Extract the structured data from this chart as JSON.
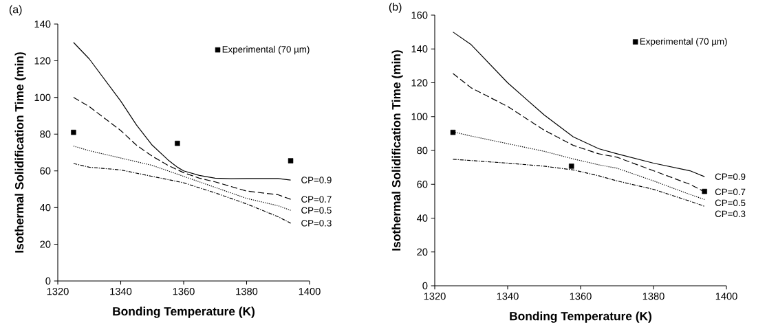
{
  "chart_data": [
    {
      "type": "line",
      "title": "(a)",
      "xlabel": "Bonding Temperature (K)",
      "ylabel": "Isothermal Solidification Time (min)",
      "xlim": [
        1320,
        1400
      ],
      "ylim": [
        0,
        140
      ],
      "xticks": [
        1320,
        1340,
        1360,
        1380,
        1400
      ],
      "yticks": [
        0,
        20,
        40,
        60,
        80,
        100,
        120,
        140
      ],
      "legend": "top right",
      "series": [
        {
          "name": "CP=0.9",
          "color": "#000000",
          "line_style": "solid",
          "marker": "none",
          "x": [
            1325,
            1330,
            1340,
            1345,
            1350,
            1355,
            1358,
            1360,
            1365,
            1370,
            1375,
            1380,
            1390,
            1394
          ],
          "values": [
            130,
            121,
            98,
            85,
            74,
            66,
            62,
            60,
            57.5,
            56,
            55.7,
            55.8,
            55.8,
            55
          ]
        },
        {
          "name": "CP=0.7",
          "color": "#000000",
          "line_style": "dashed",
          "marker": "none",
          "x": [
            1325,
            1330,
            1340,
            1345,
            1350,
            1355,
            1360,
            1365,
            1370,
            1380,
            1390,
            1394
          ],
          "values": [
            100,
            95,
            82,
            74,
            68,
            63,
            59,
            56,
            54,
            49,
            47,
            44.5
          ]
        },
        {
          "name": "CP=0.5",
          "color": "#000000",
          "line_style": "dotted",
          "marker": "none",
          "x": [
            1325,
            1330,
            1340,
            1350,
            1360,
            1370,
            1380,
            1390,
            1394
          ],
          "values": [
            73.5,
            71,
            67,
            63,
            57,
            51,
            45,
            41,
            38.5
          ]
        },
        {
          "name": "CP=0.3",
          "color": "#000000",
          "line_style": "dashdot",
          "marker": "none",
          "x": [
            1325,
            1330,
            1340,
            1350,
            1360,
            1370,
            1380,
            1390,
            1394
          ],
          "values": [
            64,
            62,
            60.5,
            57,
            53.5,
            48,
            42,
            35,
            31.5
          ]
        },
        {
          "name": "Experimental (70 µm)",
          "type": "scatter",
          "color": "#000000",
          "marker": "square",
          "x": [
            1325,
            1358,
            1394
          ],
          "values": [
            81,
            75,
            65.5
          ]
        }
      ]
    },
    {
      "type": "line",
      "title": "(b)",
      "xlabel": "Bonding Temperature (K)",
      "ylabel": "Isothermal Solidification Time (min)",
      "xlim": [
        1320,
        1400
      ],
      "ylim": [
        0,
        160
      ],
      "xticks": [
        1320,
        1340,
        1360,
        1380,
        1400
      ],
      "yticks": [
        0,
        20,
        40,
        60,
        80,
        100,
        120,
        140,
        160
      ],
      "legend": "top right",
      "series": [
        {
          "name": "CP=0.9",
          "color": "#000000",
          "line_style": "solid",
          "marker": "none",
          "x": [
            1325,
            1330,
            1340,
            1350,
            1358,
            1365,
            1370,
            1380,
            1390,
            1394
          ],
          "values": [
            150,
            142.5,
            120,
            101,
            88,
            81,
            78,
            72.5,
            68,
            64.5
          ]
        },
        {
          "name": "CP=0.7",
          "color": "#000000",
          "line_style": "dashed",
          "marker": "none",
          "x": [
            1325,
            1330,
            1340,
            1350,
            1358,
            1365,
            1370,
            1380,
            1390,
            1394
          ],
          "values": [
            125.5,
            117,
            106,
            92,
            83,
            78,
            76,
            68,
            60,
            55.5
          ]
        },
        {
          "name": "CP=0.5",
          "color": "#000000",
          "line_style": "dotted",
          "marker": "none",
          "x": [
            1325,
            1330,
            1340,
            1350,
            1358,
            1365,
            1370,
            1380,
            1390,
            1394
          ],
          "values": [
            91,
            88.5,
            84,
            79.5,
            75,
            71.5,
            69.5,
            62,
            54,
            51
          ]
        },
        {
          "name": "CP=0.3",
          "color": "#000000",
          "line_style": "dashdot",
          "marker": "none",
          "x": [
            1325,
            1340,
            1350,
            1358,
            1365,
            1370,
            1380,
            1390,
            1394
          ],
          "values": [
            74.8,
            72.5,
            70.7,
            68.5,
            65,
            62,
            57,
            50,
            47
          ]
        },
        {
          "name": "Experimental (70 µm)",
          "type": "scatter",
          "color": "#000000",
          "marker": "square",
          "x": [
            1325,
            1357.5,
            1394
          ],
          "values": [
            90.7,
            70.7,
            55.8
          ]
        }
      ]
    }
  ]
}
